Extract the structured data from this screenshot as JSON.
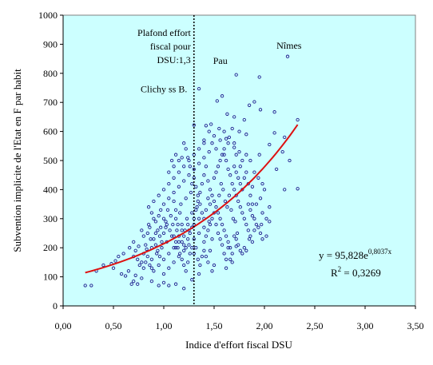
{
  "chart_data": {
    "type": "scatter",
    "title": "",
    "xlabel": "Indice d'effort fiscal DSU",
    "ylabel": "Subvention implicite de l'Etat en F par habit",
    "xlim": [
      0,
      3.5
    ],
    "ylim": [
      0,
      1000
    ],
    "x_ticks": [
      "0,00",
      "0,50",
      "1,00",
      "1,50",
      "2,00",
      "2,50",
      "3,00",
      "3,50"
    ],
    "y_ticks": [
      "0",
      "100",
      "200",
      "300",
      "400",
      "500",
      "600",
      "700",
      "800",
      "900",
      "1000"
    ],
    "grid": false,
    "legend": "none",
    "colors": {
      "plot_background": "#ccffff",
      "marker": "#1f1f8f",
      "trend": "#dd1111",
      "threshold": "#000000"
    },
    "threshold": {
      "x": 1.3,
      "label_lines": [
        "Plafond effort",
        "fiscal pour",
        "DSU:1,3"
      ]
    },
    "trendline": {
      "a": 95.828,
      "b": 0.8037,
      "x_range": [
        0.22,
        2.33
      ],
      "equation_base": "y = 95,828e",
      "equation_exp": "0,8037x",
      "r2_base": "R",
      "r2_sup": "2",
      "r2_value": " = 0,3269"
    },
    "annotations": [
      {
        "text": "Nîmes",
        "x": 2.12,
        "y": 885
      },
      {
        "text": "Pau",
        "x": 1.49,
        "y": 832
      },
      {
        "text": "Clichy ss B.",
        "x": 0.77,
        "y": 735
      }
    ],
    "points": [
      [
        2.23,
        858
      ],
      [
        1.72,
        795
      ],
      [
        1.95,
        787
      ],
      [
        1.35,
        747
      ],
      [
        1.58,
        722
      ],
      [
        1.53,
        705
      ],
      [
        1.9,
        702
      ],
      [
        1.85,
        690
      ],
      [
        1.96,
        675
      ],
      [
        2.1,
        667
      ],
      [
        1.63,
        660
      ],
      [
        1.7,
        650
      ],
      [
        1.8,
        640
      ],
      [
        2.33,
        640
      ],
      [
        1.3,
        622
      ],
      [
        1.47,
        625
      ],
      [
        1.55,
        610
      ],
      [
        1.75,
        600
      ],
      [
        2.1,
        595
      ],
      [
        2.2,
        580
      ],
      [
        1.82,
        590
      ],
      [
        1.5,
        585
      ],
      [
        1.4,
        570
      ],
      [
        1.62,
        575
      ],
      [
        2.05,
        555
      ],
      [
        2.18,
        530
      ],
      [
        1.7,
        545
      ],
      [
        1.95,
        520
      ],
      [
        2.25,
        500
      ],
      [
        2.12,
        470
      ],
      [
        2.2,
        400
      ],
      [
        2.33,
        403
      ],
      [
        2.0,
        400
      ],
      [
        1.88,
        410
      ],
      [
        1.96,
        370
      ],
      [
        1.92,
        350
      ],
      [
        2.05,
        340
      ],
      [
        1.98,
        320
      ],
      [
        2.02,
        300
      ],
      [
        2.05,
        290
      ],
      [
        1.97,
        280
      ],
      [
        1.9,
        260
      ],
      [
        2.02,
        240
      ],
      [
        1.85,
        230
      ],
      [
        1.72,
        205
      ],
      [
        1.5,
        140
      ],
      [
        1.62,
        130
      ],
      [
        1.35,
        110
      ],
      [
        1.48,
        120
      ],
      [
        0.72,
        105
      ],
      [
        0.62,
        103
      ],
      [
        0.74,
        75
      ],
      [
        0.5,
        130
      ],
      [
        0.4,
        140
      ],
      [
        0.28,
        70
      ],
      [
        0.22,
        70
      ],
      [
        0.33,
        120
      ],
      [
        0.52,
        155
      ],
      [
        0.48,
        145
      ],
      [
        0.65,
        120
      ],
      [
        0.68,
        75
      ],
      [
        0.7,
        85
      ],
      [
        0.78,
        95
      ],
      [
        0.88,
        85
      ],
      [
        0.95,
        70
      ],
      [
        1.0,
        80
      ],
      [
        1.05,
        70
      ],
      [
        1.12,
        75
      ],
      [
        1.2,
        60
      ],
      [
        1.28,
        90
      ],
      [
        0.58,
        110
      ],
      [
        0.55,
        170
      ],
      [
        0.6,
        180
      ],
      [
        0.66,
        200
      ],
      [
        0.7,
        220
      ],
      [
        0.75,
        205
      ],
      [
        0.8,
        240
      ],
      [
        0.85,
        280
      ],
      [
        0.9,
        300
      ],
      [
        0.95,
        310
      ],
      [
        0.83,
        195
      ],
      [
        0.87,
        230
      ],
      [
        0.92,
        250
      ],
      [
        0.97,
        270
      ],
      [
        1.02,
        290
      ],
      [
        1.07,
        310
      ],
      [
        1.12,
        330
      ],
      [
        1.17,
        350
      ],
      [
        1.22,
        370
      ],
      [
        1.27,
        390
      ],
      [
        0.88,
        160
      ],
      [
        0.93,
        180
      ],
      [
        0.98,
        200
      ],
      [
        1.03,
        220
      ],
      [
        1.08,
        240
      ],
      [
        1.13,
        260
      ],
      [
        1.18,
        280
      ],
      [
        1.23,
        300
      ],
      [
        1.28,
        320
      ],
      [
        1.33,
        340
      ],
      [
        0.9,
        120
      ],
      [
        0.95,
        140
      ],
      [
        1.0,
        160
      ],
      [
        1.05,
        180
      ],
      [
        1.1,
        200
      ],
      [
        1.15,
        220
      ],
      [
        1.2,
        240
      ],
      [
        1.25,
        260
      ],
      [
        1.3,
        280
      ],
      [
        1.35,
        300
      ],
      [
        1.0,
        110
      ],
      [
        1.05,
        130
      ],
      [
        1.1,
        150
      ],
      [
        1.15,
        170
      ],
      [
        1.2,
        190
      ],
      [
        1.25,
        210
      ],
      [
        1.3,
        230
      ],
      [
        1.35,
        250
      ],
      [
        1.4,
        270
      ],
      [
        1.45,
        290
      ],
      [
        1.0,
        350
      ],
      [
        1.05,
        370
      ],
      [
        1.1,
        390
      ],
      [
        1.15,
        410
      ],
      [
        1.2,
        430
      ],
      [
        1.25,
        450
      ],
      [
        1.3,
        470
      ],
      [
        1.35,
        490
      ],
      [
        1.4,
        510
      ],
      [
        1.45,
        530
      ],
      [
        0.95,
        380
      ],
      [
        1.0,
        400
      ],
      [
        1.05,
        420
      ],
      [
        1.1,
        440
      ],
      [
        1.15,
        460
      ],
      [
        1.2,
        480
      ],
      [
        1.25,
        500
      ],
      [
        1.3,
        520
      ],
      [
        1.35,
        540
      ],
      [
        1.4,
        560
      ],
      [
        1.1,
        360
      ],
      [
        1.12,
        300
      ],
      [
        1.14,
        280
      ],
      [
        1.16,
        320
      ],
      [
        1.18,
        260
      ],
      [
        1.2,
        210
      ],
      [
        1.22,
        200
      ],
      [
        1.24,
        230
      ],
      [
        1.26,
        250
      ],
      [
        1.28,
        270
      ],
      [
        1.3,
        300
      ],
      [
        1.32,
        330
      ],
      [
        1.34,
        360
      ],
      [
        1.36,
        390
      ],
      [
        1.38,
        420
      ],
      [
        1.4,
        450
      ],
      [
        1.42,
        480
      ],
      [
        1.44,
        430
      ],
      [
        1.46,
        400
      ],
      [
        1.48,
        380
      ],
      [
        1.5,
        360
      ],
      [
        1.52,
        340
      ],
      [
        1.54,
        320
      ],
      [
        1.56,
        300
      ],
      [
        1.58,
        280
      ],
      [
        1.6,
        260
      ],
      [
        1.62,
        240
      ],
      [
        1.64,
        220
      ],
      [
        1.66,
        200
      ],
      [
        1.68,
        180
      ],
      [
        1.5,
        440
      ],
      [
        1.52,
        460
      ],
      [
        1.54,
        480
      ],
      [
        1.56,
        500
      ],
      [
        1.58,
        520
      ],
      [
        1.6,
        540
      ],
      [
        1.62,
        500
      ],
      [
        1.64,
        470
      ],
      [
        1.66,
        450
      ],
      [
        1.68,
        420
      ],
      [
        1.7,
        400
      ],
      [
        1.72,
        380
      ],
      [
        1.74,
        360
      ],
      [
        1.76,
        340
      ],
      [
        1.78,
        320
      ],
      [
        1.8,
        300
      ],
      [
        1.82,
        280
      ],
      [
        1.84,
        260
      ],
      [
        1.86,
        240
      ],
      [
        1.88,
        220
      ],
      [
        1.7,
        480
      ],
      [
        1.72,
        460
      ],
      [
        1.74,
        440
      ],
      [
        1.76,
        420
      ],
      [
        1.78,
        400
      ],
      [
        1.8,
        440
      ],
      [
        1.82,
        460
      ],
      [
        1.84,
        420
      ],
      [
        1.86,
        380
      ],
      [
        1.88,
        350
      ],
      [
        1.4,
        220
      ],
      [
        1.42,
        240
      ],
      [
        1.44,
        260
      ],
      [
        1.46,
        280
      ],
      [
        1.48,
        300
      ],
      [
        1.5,
        320
      ],
      [
        1.52,
        280
      ],
      [
        1.54,
        250
      ],
      [
        1.56,
        230
      ],
      [
        1.58,
        210
      ],
      [
        1.3,
        180
      ],
      [
        1.32,
        200
      ],
      [
        1.34,
        160
      ],
      [
        1.36,
        140
      ],
      [
        1.38,
        170
      ],
      [
        1.4,
        190
      ],
      [
        1.42,
        170
      ],
      [
        1.44,
        150
      ],
      [
        1.46,
        190
      ],
      [
        1.48,
        230
      ],
      [
        0.85,
        340
      ],
      [
        0.88,
        320
      ],
      [
        0.9,
        360
      ],
      [
        0.92,
        290
      ],
      [
        0.94,
        260
      ],
      [
        0.96,
        240
      ],
      [
        0.98,
        220
      ],
      [
        1.0,
        250
      ],
      [
        1.02,
        270
      ],
      [
        1.04,
        330
      ],
      [
        0.78,
        260
      ],
      [
        0.8,
        180
      ],
      [
        0.82,
        210
      ],
      [
        0.84,
        250
      ],
      [
        0.86,
        270
      ],
      [
        0.88,
        200
      ],
      [
        0.9,
        230
      ],
      [
        0.92,
        210
      ],
      [
        0.94,
        190
      ],
      [
        0.96,
        170
      ],
      [
        0.7,
        170
      ],
      [
        0.72,
        190
      ],
      [
        0.74,
        160
      ],
      [
        0.76,
        140
      ],
      [
        0.78,
        150
      ],
      [
        0.8,
        130
      ],
      [
        0.82,
        150
      ],
      [
        0.84,
        170
      ],
      [
        0.86,
        140
      ],
      [
        0.88,
        130
      ],
      [
        1.05,
        460
      ],
      [
        1.08,
        500
      ],
      [
        1.1,
        480
      ],
      [
        1.12,
        520
      ],
      [
        1.15,
        500
      ],
      [
        1.18,
        510
      ],
      [
        1.2,
        560
      ],
      [
        1.22,
        540
      ],
      [
        1.24,
        510
      ],
      [
        1.26,
        480
      ],
      [
        1.55,
        380
      ],
      [
        1.57,
        420
      ],
      [
        1.59,
        400
      ],
      [
        1.61,
        360
      ],
      [
        1.63,
        340
      ],
      [
        1.65,
        380
      ],
      [
        1.67,
        330
      ],
      [
        1.69,
        300
      ],
      [
        1.71,
        290
      ],
      [
        1.73,
        250
      ],
      [
        1.6,
        180
      ],
      [
        1.62,
        160
      ],
      [
        1.64,
        200
      ],
      [
        1.66,
        160
      ],
      [
        1.68,
        150
      ],
      [
        1.7,
        240
      ],
      [
        1.72,
        230
      ],
      [
        1.74,
        210
      ],
      [
        1.76,
        190
      ],
      [
        1.78,
        180
      ],
      [
        1.8,
        200
      ],
      [
        1.82,
        190
      ],
      [
        1.84,
        350
      ],
      [
        1.86,
        330
      ],
      [
        1.88,
        310
      ],
      [
        1.9,
        300
      ],
      [
        1.92,
        280
      ],
      [
        1.94,
        270
      ],
      [
        1.96,
        250
      ],
      [
        1.98,
        230
      ],
      [
        1.28,
        420
      ],
      [
        1.3,
        440
      ],
      [
        1.32,
        410
      ],
      [
        1.34,
        380
      ],
      [
        1.36,
        350
      ],
      [
        1.38,
        320
      ],
      [
        1.4,
        300
      ],
      [
        1.42,
        330
      ],
      [
        1.44,
        370
      ],
      [
        1.46,
        350
      ],
      [
        1.1,
        240
      ],
      [
        1.12,
        220
      ],
      [
        1.14,
        200
      ],
      [
        1.16,
        180
      ],
      [
        1.18,
        160
      ],
      [
        1.2,
        140
      ],
      [
        1.22,
        120
      ],
      [
        1.24,
        150
      ],
      [
        1.26,
        180
      ],
      [
        1.28,
        200
      ],
      [
        0.97,
        330
      ],
      [
        1.0,
        300
      ],
      [
        1.03,
        280
      ],
      [
        1.06,
        260
      ],
      [
        1.09,
        280
      ],
      [
        1.12,
        200
      ],
      [
        1.15,
        240
      ],
      [
        1.18,
        220
      ],
      [
        1.21,
        260
      ],
      [
        1.24,
        280
      ],
      [
        1.6,
        600
      ],
      [
        1.65,
        580
      ],
      [
        1.7,
        560
      ],
      [
        1.75,
        530
      ],
      [
        1.78,
        500
      ],
      [
        1.82,
        520
      ],
      [
        1.86,
        500
      ],
      [
        1.9,
        460
      ],
      [
        1.94,
        440
      ],
      [
        1.98,
        420
      ],
      [
        1.45,
        600
      ],
      [
        1.42,
        620
      ],
      [
        1.48,
        560
      ],
      [
        1.52,
        540
      ],
      [
        1.56,
        570
      ],
      [
        1.6,
        520
      ],
      [
        1.64,
        560
      ],
      [
        1.68,
        610
      ],
      [
        1.72,
        520
      ],
      [
        1.76,
        480
      ]
    ]
  }
}
